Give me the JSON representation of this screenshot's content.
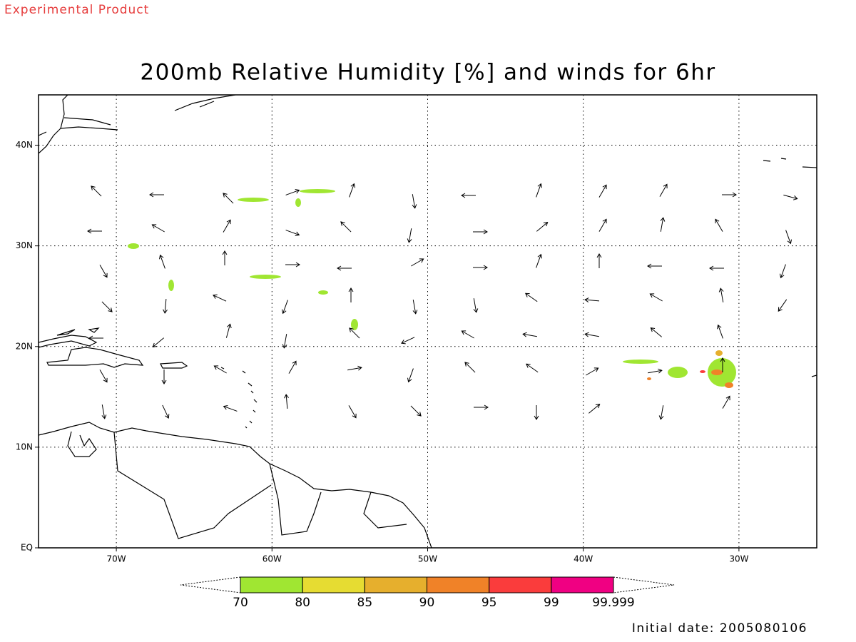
{
  "header": {
    "note": "Experimental Product",
    "title": "200mb Relative Humidity [%] and winds for 6hr"
  },
  "map": {
    "xlim": [
      -75,
      -25
    ],
    "ylim": [
      0,
      45
    ],
    "xticks": [
      {
        "value": -70,
        "label": "70W"
      },
      {
        "value": -60,
        "label": "60W"
      },
      {
        "value": -50,
        "label": "50W"
      },
      {
        "value": -40,
        "label": "40W"
      },
      {
        "value": -30,
        "label": "30W"
      }
    ],
    "yticks": [
      {
        "value": 40,
        "label": "40N"
      },
      {
        "value": 30,
        "label": "30N"
      },
      {
        "value": 20,
        "label": "20N"
      },
      {
        "value": 10,
        "label": "10N"
      },
      {
        "value": 0,
        "label": "EQ"
      }
    ],
    "grid": true
  },
  "colorbar": {
    "levels": [
      {
        "value": 70,
        "label": "70"
      },
      {
        "value": 80,
        "label": "80"
      },
      {
        "value": 85,
        "label": "85"
      },
      {
        "value": 90,
        "label": "90"
      },
      {
        "value": 95,
        "label": "95"
      },
      {
        "value": 99,
        "label": "99"
      },
      {
        "value": 99.999,
        "label": "99.999"
      }
    ],
    "colors": [
      "#a0e632",
      "#e6dc32",
      "#e6af2d",
      "#f08228",
      "#fa3c3c",
      "#f00082"
    ]
  },
  "footer": {
    "date": "Initial date: 2005080106"
  }
}
